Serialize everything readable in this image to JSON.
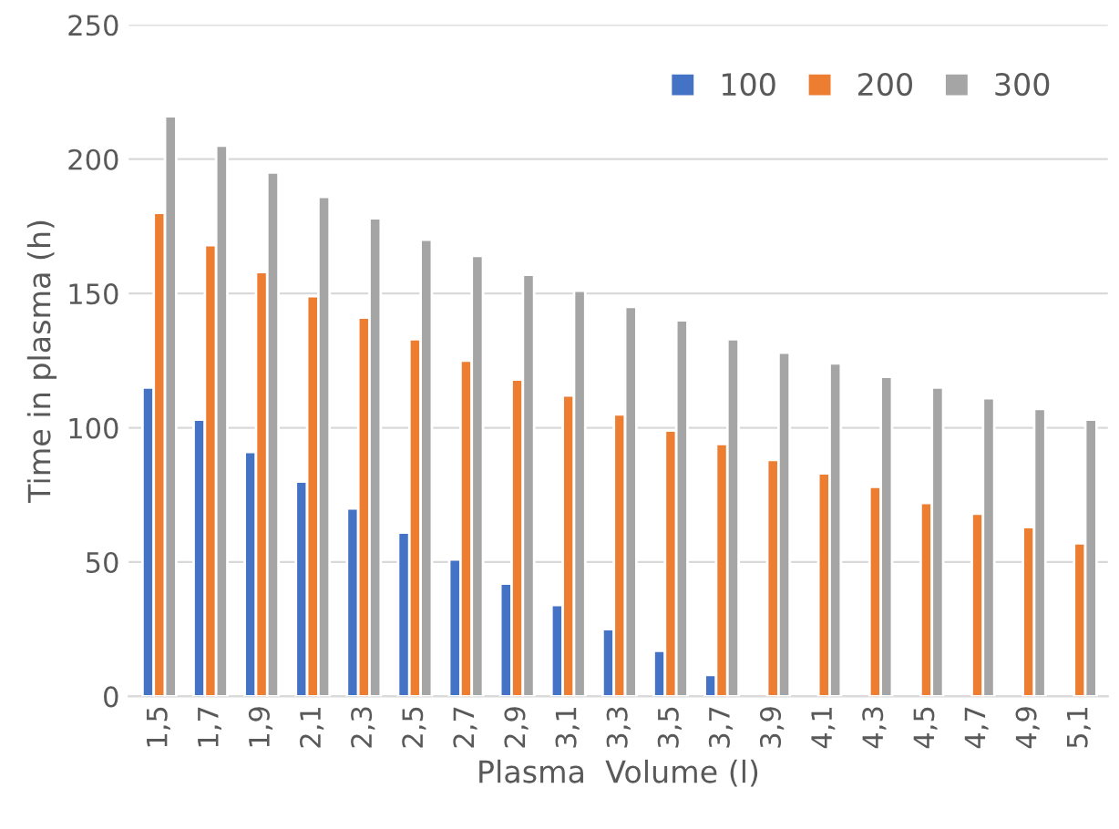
{
  "chart_data": {
    "type": "bar",
    "xlabel": "Plasma  Volume (l)",
    "ylabel": "Time in plasma (h)",
    "categories": [
      "1,5",
      "1,7",
      "1,9",
      "2,1",
      "2,3",
      "2,5",
      "2,7",
      "2,9",
      "3,1",
      "3,3",
      "3,5",
      "3,7",
      "3,9",
      "4,1",
      "4,3",
      "4,5",
      "4,7",
      "4,9",
      "5,1"
    ],
    "series": [
      {
        "name": "100",
        "color": "#4472c4",
        "values": [
          115,
          103,
          91,
          80,
          70,
          61,
          51,
          42,
          34,
          25,
          17,
          8,
          null,
          null,
          null,
          null,
          null,
          null,
          null
        ]
      },
      {
        "name": "200",
        "color": "#ed7d31",
        "values": [
          180,
          168,
          158,
          149,
          141,
          133,
          125,
          118,
          112,
          105,
          99,
          94,
          88,
          83,
          78,
          72,
          68,
          63,
          57
        ]
      },
      {
        "name": "300",
        "color": "#a5a5a5",
        "values": [
          216,
          205,
          195,
          186,
          178,
          170,
          164,
          157,
          151,
          145,
          140,
          133,
          128,
          124,
          119,
          115,
          111,
          107,
          103
        ]
      }
    ],
    "ylim": [
      0,
      250
    ],
    "yticks": [
      0,
      50,
      100,
      150,
      200,
      250
    ],
    "grid": "y",
    "legend": "top right"
  }
}
